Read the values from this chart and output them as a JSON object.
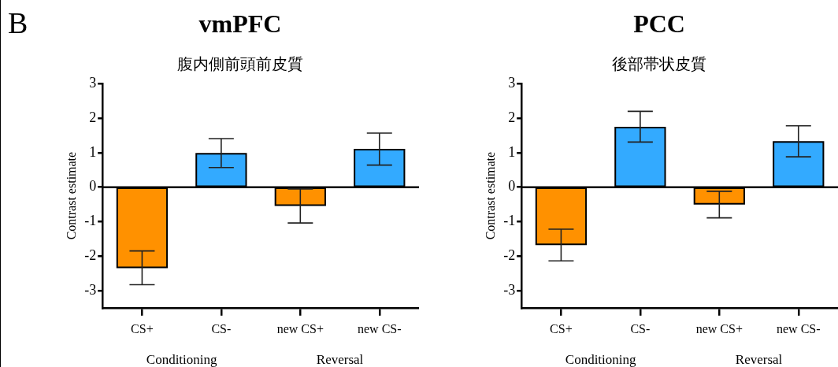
{
  "chart_data": [
    {
      "type": "bar",
      "title": "vmPFC",
      "subtitle": "腹内側前頭前皮質",
      "ylabel": "Contrast estimate",
      "categories": [
        "CS+",
        "CS-",
        "new CS+",
        "new CS-"
      ],
      "values": [
        -2.33,
        0.97,
        -0.52,
        1.09
      ],
      "errors": [
        [
          -2.83,
          -1.85
        ],
        [
          0.57,
          1.41
        ],
        [
          -1.04,
          -0.05
        ],
        [
          0.64,
          1.57
        ]
      ],
      "colors": [
        "#ff9100",
        "#33aaff",
        "#ff9100",
        "#33aaff"
      ],
      "ylim": [
        -3.5,
        3
      ],
      "yticks": [
        -3,
        -2,
        -1,
        0,
        1,
        2,
        3
      ],
      "grid": false,
      "legend": false,
      "ref_lines": [
        {
          "axis": "y",
          "value": 0,
          "color": "#000000"
        }
      ],
      "annotations": [
        "B",
        "Conditioning",
        "Reversal"
      ]
    },
    {
      "type": "bar",
      "title": "PCC",
      "subtitle": "後部帯状皮質",
      "ylabel": "Contrast estimate",
      "categories": [
        "CS+",
        "CS-",
        "new CS+",
        "new CS-"
      ],
      "values": [
        -1.66,
        1.73,
        -0.48,
        1.31
      ],
      "errors": [
        [
          -2.14,
          -1.22
        ],
        [
          1.31,
          2.2
        ],
        [
          -0.89,
          -0.12
        ],
        [
          0.88,
          1.78
        ]
      ],
      "colors": [
        "#ff9100",
        "#33aaff",
        "#ff9100",
        "#33aaff"
      ],
      "ylim": [
        -3.5,
        3
      ],
      "yticks": [
        -3,
        -2,
        -1,
        0,
        1,
        2,
        3
      ],
      "grid": false,
      "legend": false,
      "ref_lines": [
        {
          "axis": "y",
          "value": 0,
          "color": "#000000"
        }
      ],
      "annotations": [
        "Conditioning",
        "Reversal"
      ]
    }
  ]
}
